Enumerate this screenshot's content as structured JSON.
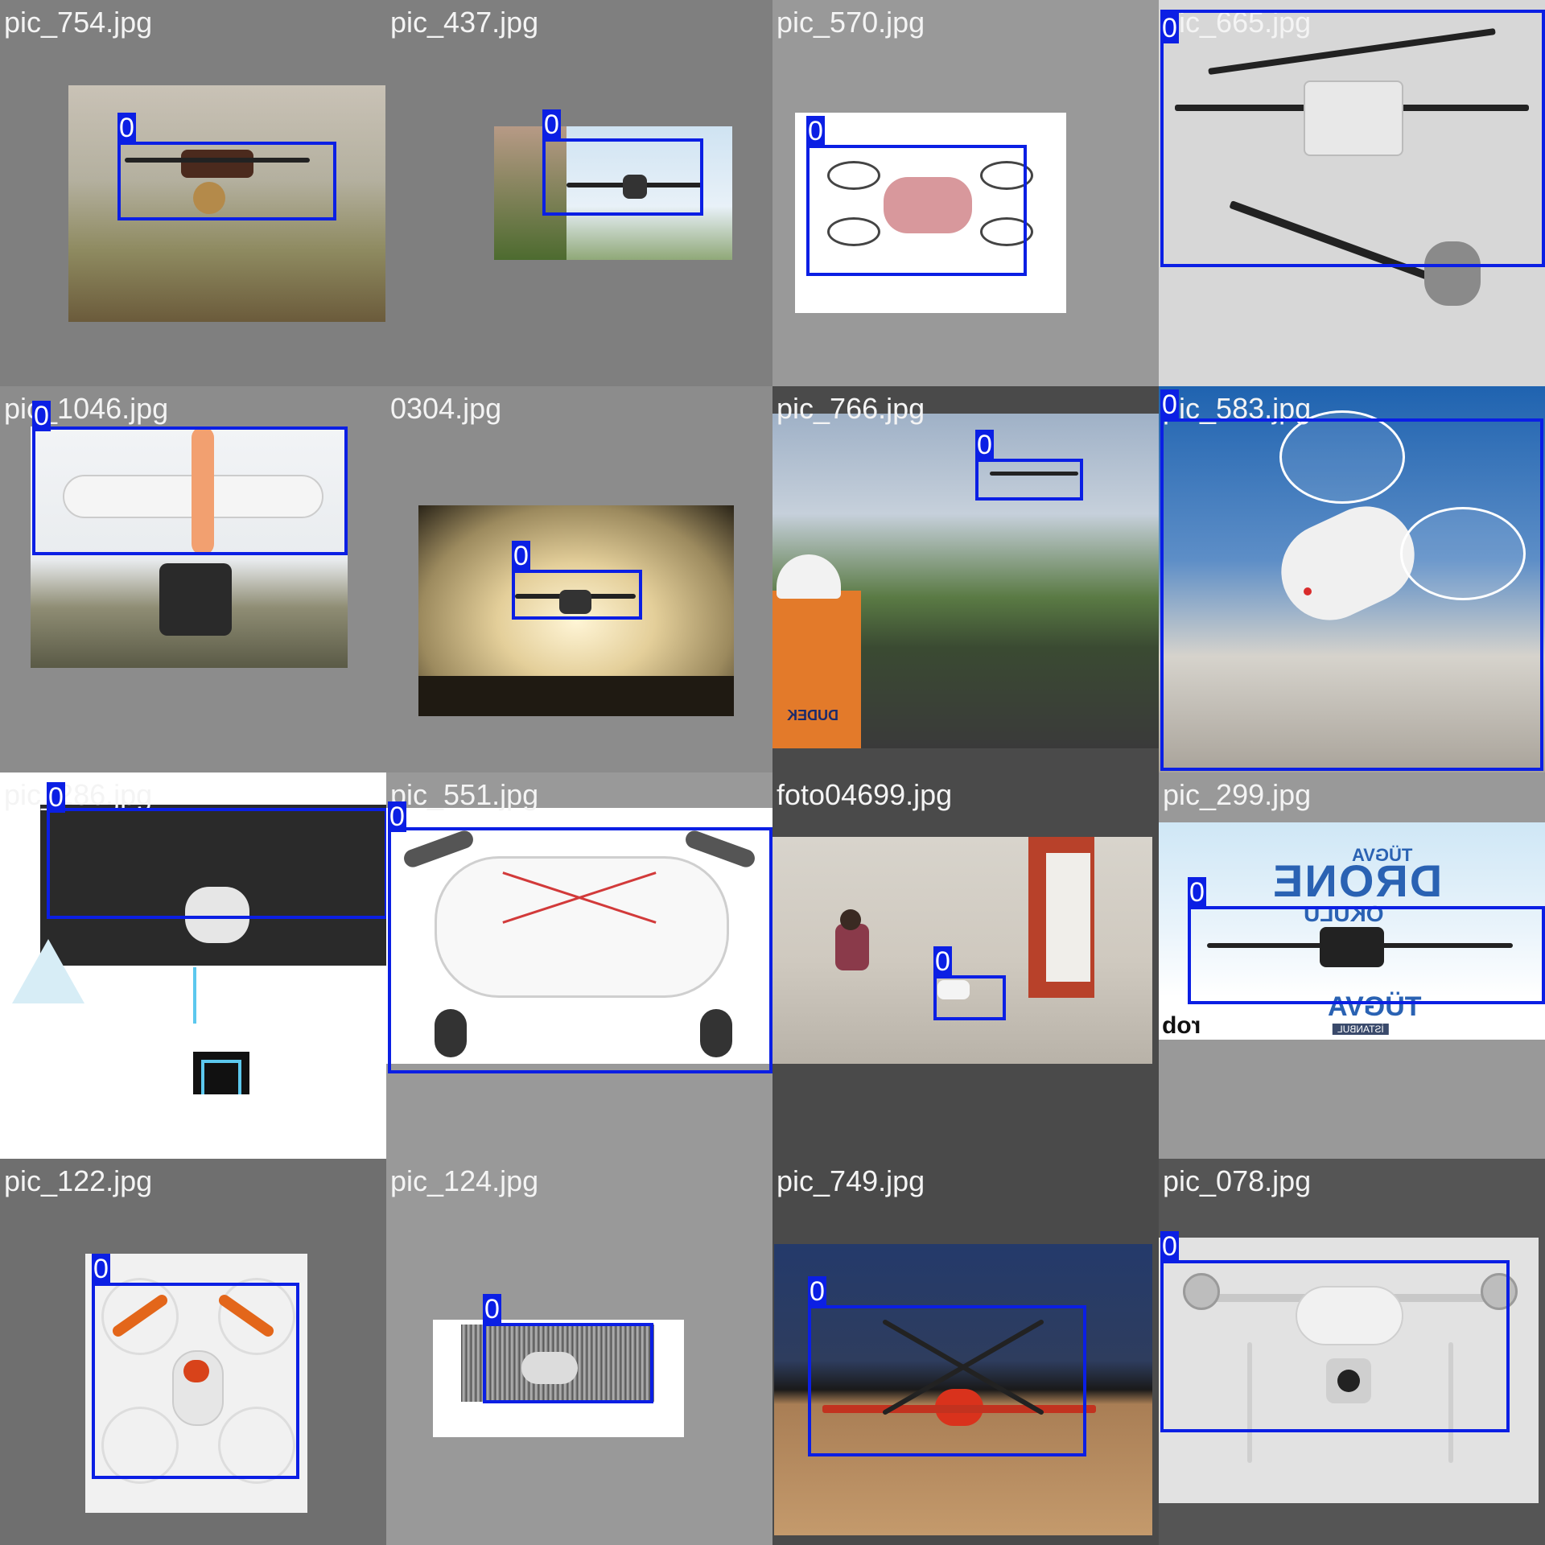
{
  "grid": {
    "tiles": [
      {
        "label": "pic_754.jpg",
        "bg": "#7f7f7f",
        "photo": "city",
        "box_label": "0"
      },
      {
        "label": "pic_437.jpg",
        "bg": "#7f7f7f",
        "photo": "sky",
        "box_label": "0"
      },
      {
        "label": "pic_570.jpg",
        "bg": "#999999",
        "photo": "white-pink",
        "box_label": "0"
      },
      {
        "label": "pic_665.jpg",
        "bg": "#d4d4d4",
        "photo": "grey-drone",
        "box_label": "0"
      },
      {
        "label": "pic_1046.jpg",
        "bg": "#8c8c8c",
        "photo": "phantom",
        "box_label": "0"
      },
      {
        "label": "0304.jpg",
        "bg": "#8c8c8c",
        "photo": "sunset",
        "box_label": "0"
      },
      {
        "label": "pic_766.jpg",
        "bg": "#4a4a4a",
        "photo": "mountain",
        "box_label": "0"
      },
      {
        "label": "pic_583.jpg",
        "bg": "#1e5a9e",
        "photo": "clouds",
        "box_label": "0"
      },
      {
        "label": "pic_286.jpg",
        "bg": "#ffffff",
        "photo": "inspire",
        "box_label": "0"
      },
      {
        "label": "pic_551.jpg",
        "bg": "#999999",
        "photo": "white-closeup",
        "box_label": "0"
      },
      {
        "label": "foto04699.jpg",
        "bg": "#4a4a4a",
        "photo": "indoor",
        "box_label": "0"
      },
      {
        "label": "pic_299.jpg",
        "bg": "#999999",
        "photo": "banner",
        "box_label": "0"
      },
      {
        "label": "pic_122.jpg",
        "bg": "#6f6f6f",
        "photo": "orange-quad",
        "box_label": "0"
      },
      {
        "label": "pic_124.jpg",
        "bg": "#999999",
        "photo": "small-grey",
        "box_label": "0"
      },
      {
        "label": "pic_749.jpg",
        "bg": "#4a4a4a",
        "photo": "red-hexa",
        "box_label": "0"
      },
      {
        "label": "pic_078.jpg",
        "bg": "#555555",
        "photo": "phantom4",
        "box_label": "0"
      }
    ],
    "banner_text": {
      "top": "TÜGVA",
      "main": "DRONE",
      "sub": "OKULU",
      "bottom": "TÜGVA",
      "city": "İSTANBUL",
      "logo": "rob"
    },
    "vest_text": "DUDEK",
    "box_color": "#0b1fe4"
  }
}
